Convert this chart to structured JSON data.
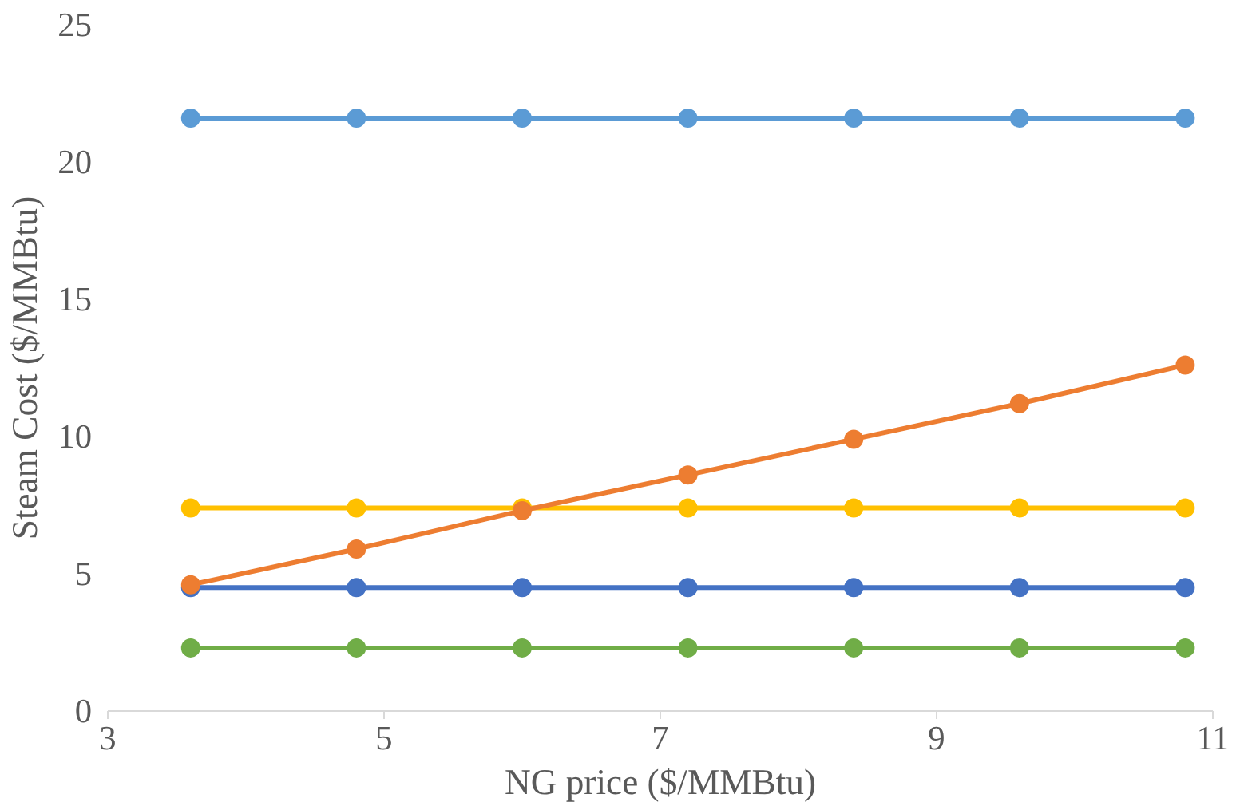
{
  "chart_data": {
    "type": "line",
    "xlabel": "NG price ($/MMBtu)",
    "ylabel": "Steam Cost ($/MMBtu)",
    "x": [
      3.6,
      4.8,
      6.0,
      7.2,
      8.4,
      9.6,
      10.8
    ],
    "xlim": [
      3,
      11
    ],
    "xticks": [
      3,
      5,
      7,
      9,
      11
    ],
    "ylim": [
      0,
      25
    ],
    "yticks": [
      0,
      5,
      10,
      15,
      20,
      25
    ],
    "grid": false,
    "marker": "circle",
    "line_style": "solid",
    "series": [
      {
        "color": "#5b9bd5",
        "values": [
          21.6,
          21.6,
          21.6,
          21.6,
          21.6,
          21.6,
          21.6
        ]
      },
      {
        "color": "#ffc000",
        "values": [
          7.4,
          7.4,
          7.4,
          7.4,
          7.4,
          7.4,
          7.4
        ]
      },
      {
        "color": "#4472c4",
        "values": [
          4.5,
          4.5,
          4.5,
          4.5,
          4.5,
          4.5,
          4.5
        ]
      },
      {
        "color": "#70ad47",
        "values": [
          2.3,
          2.3,
          2.3,
          2.3,
          2.3,
          2.3,
          2.3
        ]
      },
      {
        "color": "#ed7d31",
        "values": [
          4.6,
          5.9,
          7.3,
          8.6,
          9.9,
          11.2,
          12.6
        ]
      }
    ]
  }
}
